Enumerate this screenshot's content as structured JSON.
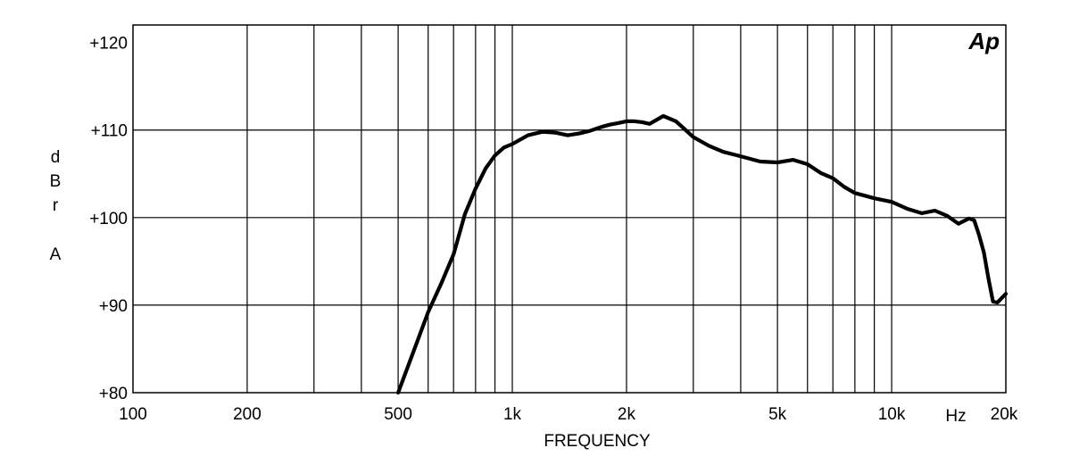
{
  "chart_data": {
    "type": "line",
    "title": "",
    "xlabel": "FREQUENCY",
    "xunit": "Hz",
    "ylabel": [
      "d",
      "B",
      "r",
      "A"
    ],
    "logo": "Ap",
    "x_scale": "log",
    "xlim": [
      100,
      20000
    ],
    "ylim": [
      80,
      122
    ],
    "grid": true,
    "xticks": [
      {
        "value": 100,
        "label": "100"
      },
      {
        "value": 200,
        "label": "200"
      },
      {
        "value": 500,
        "label": "500"
      },
      {
        "value": 1000,
        "label": "1k"
      },
      {
        "value": 2000,
        "label": "2k"
      },
      {
        "value": 5000,
        "label": "5k"
      },
      {
        "value": 10000,
        "label": "10k"
      },
      {
        "value": 20000,
        "label": "20k"
      }
    ],
    "yticks": [
      {
        "value": 80,
        "label": "+80"
      },
      {
        "value": 90,
        "label": "+90"
      },
      {
        "value": 100,
        "label": "+100"
      },
      {
        "value": 110,
        "label": "+110"
      },
      {
        "value": 120,
        "label": "+120"
      }
    ],
    "x_gridlines": [
      200,
      300,
      400,
      500,
      600,
      700,
      800,
      900,
      1000,
      2000,
      3000,
      4000,
      5000,
      6000,
      7000,
      8000,
      9000,
      10000
    ],
    "y_gridlines": [
      90,
      100,
      110
    ],
    "series": [
      {
        "color": "#000000",
        "x": [
          500,
          550,
          600,
          650,
          700,
          750,
          800,
          850,
          900,
          950,
          1000,
          1100,
          1200,
          1300,
          1400,
          1500,
          1600,
          1700,
          1800,
          1900,
          2000,
          2100,
          2200,
          2300,
          2500,
          2700,
          3000,
          3300,
          3600,
          4000,
          4500,
          5000,
          5500,
          6000,
          6500,
          7000,
          7500,
          8000,
          8500,
          9000,
          10000,
          11000,
          12000,
          13000,
          14000,
          15000,
          16000,
          16500,
          17000,
          17500,
          18000,
          18500,
          19000,
          20000
        ],
        "y": [
          80.0,
          84.8,
          89.2,
          92.5,
          95.8,
          100.4,
          103.3,
          105.6,
          107.1,
          108.0,
          108.4,
          109.4,
          109.8,
          109.7,
          109.4,
          109.6,
          109.9,
          110.3,
          110.6,
          110.8,
          111.0,
          111.0,
          110.9,
          110.7,
          111.6,
          111.0,
          109.2,
          108.2,
          107.5,
          107.0,
          106.4,
          106.3,
          106.6,
          106.1,
          105.1,
          104.5,
          103.5,
          102.8,
          102.5,
          102.2,
          101.8,
          101.0,
          100.5,
          100.8,
          100.2,
          99.3,
          99.9,
          99.7,
          98.0,
          96.0,
          93.0,
          90.4,
          90.3,
          91.3
        ]
      }
    ]
  }
}
